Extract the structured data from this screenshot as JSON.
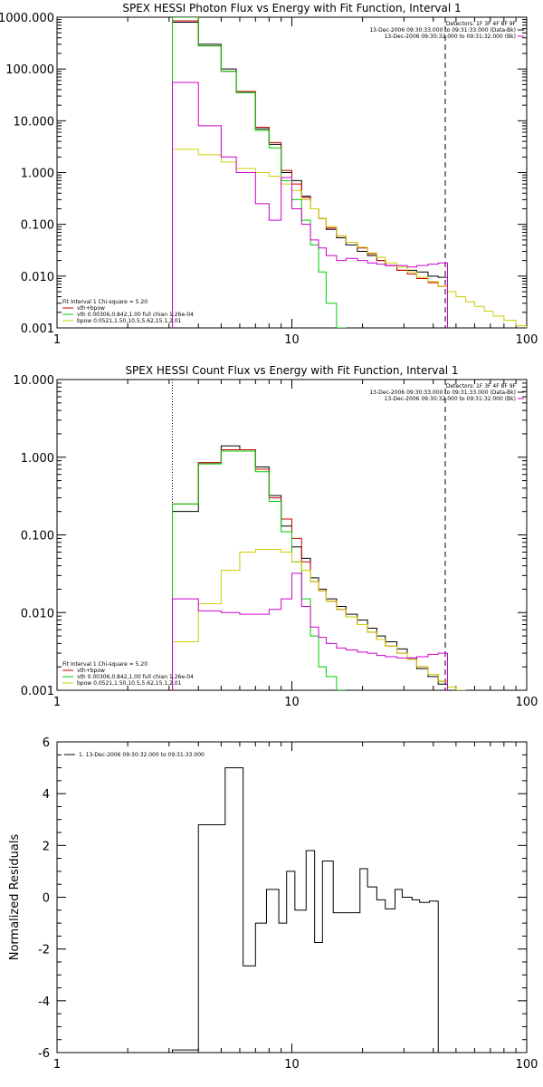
{
  "chart_data": [
    {
      "type": "line",
      "title": "SPEX HESSI Photon Flux vs Energy with Fit Function, Interval 1",
      "xscale": "log",
      "yscale": "log",
      "xlim": [
        1,
        100
      ],
      "ylim": [
        0.001,
        1000
      ],
      "x_tick_labels": [
        "1",
        "10",
        "100"
      ],
      "y_tick_labels": [
        "1000.000",
        "100.000",
        "10.000",
        "1.000",
        "0.100",
        "0.010",
        "0.001"
      ],
      "header_lines": [
        "Detectors: 1F 3F 4F 8F 9F",
        "13-Dec-2006 09:30:33.000 to 09:31:33.000 (Data-Bk)",
        "13-Dec-2006 09:30:32.000 to 09:31:32.000 (Bk)"
      ],
      "fit_lines": [
        "Fit Interval  1    Chi-square = 5.20",
        "vth+bpow",
        "vth 0.00306,0.842,1.00  full chian 1.26e-04",
        "bpow 0.0521,1.50,10.5,5.62,15.1,2.01"
      ],
      "vlines": [
        {
          "x": 3.1,
          "style": "dotted",
          "color": "#000000"
        },
        {
          "x": 45,
          "style": "dashed",
          "color": "#000000"
        }
      ],
      "edges": [
        3.1,
        3.5,
        4.0,
        4.5,
        5.0,
        5.8,
        7.0,
        8.0,
        9.0,
        10.0,
        11.0,
        12.0,
        13.0,
        14.0,
        15.5,
        17.0,
        19.0,
        21.0,
        23.0,
        25.0,
        28.0,
        31.0,
        34.0,
        38.0,
        42.0,
        46.0,
        50.0,
        55.0,
        60.0,
        66.0,
        72.0,
        80.0,
        90.0,
        100.0
      ],
      "series": [
        {
          "name": "Data-Bk",
          "color": "#000000",
          "start": 0,
          "values": [
            800,
            800,
            300,
            300,
            100,
            35,
            7,
            3.5,
            1.0,
            0.7,
            0.35,
            0.2,
            0.13,
            0.08,
            0.055,
            0.04,
            0.03,
            0.025,
            0.02,
            0.016,
            0.013,
            0.013,
            0.012,
            0.01,
            0.0095
          ]
        },
        {
          "name": "vth+bpow",
          "color": "#cc0000",
          "start": 0,
          "values": [
            850,
            850,
            280,
            280,
            90,
            37,
            7.5,
            3.8,
            1.1,
            0.6,
            0.33,
            0.2,
            0.13,
            0.085,
            0.06,
            0.045,
            0.035,
            0.027,
            0.02,
            0.016,
            0.013,
            0.011,
            0.009,
            0.0075,
            0.0063
          ]
        },
        {
          "name": "vth",
          "color": "#00cc00",
          "start": 0,
          "values": [
            1000,
            1000,
            280,
            280,
            90,
            35,
            6.5,
            3.0,
            0.7,
            0.3,
            0.12,
            0.04,
            0.012,
            0.003,
            0.001
          ]
        },
        {
          "name": "bpow",
          "color": "#cccc00",
          "start": 0,
          "values": [
            2.8,
            2.8,
            2.2,
            2.2,
            1.6,
            1.2,
            1.0,
            0.85,
            0.6,
            0.45,
            0.3,
            0.2,
            0.13,
            0.09,
            0.06,
            0.045,
            0.036,
            0.028,
            0.023,
            0.018,
            0.015,
            0.012,
            0.0095,
            0.0078,
            0.0063,
            0.005,
            0.004,
            0.0032,
            0.0026,
            0.0021,
            0.0017,
            0.0014,
            0.0011
          ]
        },
        {
          "name": "Bk",
          "color": "#cc00cc",
          "start": 0,
          "values": [
            55,
            55,
            8,
            8,
            2.0,
            1.0,
            0.25,
            0.12,
            0.8,
            0.2,
            0.1,
            0.05,
            0.035,
            0.025,
            0.02,
            0.022,
            0.02,
            0.018,
            0.017,
            0.016,
            0.016,
            0.015,
            0.016,
            0.017,
            0.018
          ]
        }
      ]
    },
    {
      "type": "line",
      "title": "SPEX HESSI Count Flux vs Energy with Fit Function, Interval 1",
      "xscale": "log",
      "yscale": "log",
      "xlim": [
        1,
        100
      ],
      "ylim": [
        0.001,
        10
      ],
      "x_tick_labels": [
        "1",
        "10",
        "100"
      ],
      "y_tick_labels": [
        "10.000",
        "1.000",
        "0.100",
        "0.010",
        "0.001"
      ],
      "header_lines": [
        "Detectors: 1F 3F 4F 8F 9F",
        "13-Dec-2006 09:30:33.000 to 09:31:33.000 (Data-Bk)",
        "13-Dec-2006 09:30:32.000 to 09:31:32.000 (Bk)"
      ],
      "fit_lines": [
        "Fit Interval  1    Chi-square = 5.20",
        "vth+bpow",
        "vth 0.00306,0.842,1.00  full chian 1.26e-04",
        "bpow 0.0521,1.50,10.5,5.62,15.1,2.01"
      ],
      "vlines": [
        {
          "x": 3.1,
          "style": "dotted",
          "color": "#000000"
        },
        {
          "x": 45,
          "style": "dashed",
          "color": "#000000"
        }
      ],
      "edges": [
        3.1,
        4.0,
        5.0,
        6.0,
        7.0,
        8.0,
        9.0,
        10.0,
        11.0,
        12.0,
        13.0,
        14.0,
        15.5,
        17.0,
        19.0,
        21.0,
        23.0,
        25.0,
        28.0,
        31.0,
        34.0,
        38.0,
        42.0,
        46.0,
        50.0,
        55.0
      ],
      "series": [
        {
          "name": "Data-Bk",
          "color": "#000000",
          "start": 0,
          "values": [
            0.2,
            0.85,
            1.4,
            1.25,
            0.75,
            0.32,
            0.13,
            0.07,
            0.05,
            0.028,
            0.02,
            0.015,
            0.012,
            0.0095,
            0.008,
            0.0063,
            0.005,
            0.0042,
            0.0034,
            0.0026,
            0.0019,
            0.0015,
            0.0012
          ]
        },
        {
          "name": "vth+bpow",
          "color": "#cc0000",
          "start": 0,
          "values": [
            0.25,
            0.85,
            1.25,
            1.25,
            0.7,
            0.3,
            0.16,
            0.09,
            0.045,
            0.025,
            0.019,
            0.014,
            0.011,
            0.0088,
            0.007,
            0.0056,
            0.0045,
            0.0037,
            0.003,
            0.0025,
            0.002,
            0.0016,
            0.0013,
            0.0011,
            0.001
          ]
        },
        {
          "name": "vth",
          "color": "#00cc00",
          "start": 0,
          "values": [
            0.25,
            0.82,
            1.2,
            1.2,
            0.65,
            0.27,
            0.11,
            0.045,
            0.015,
            0.005,
            0.002,
            0.0015,
            0.001
          ]
        },
        {
          "name": "bpow",
          "color": "#cccc00",
          "start": 0,
          "values": [
            0.0042,
            0.013,
            0.035,
            0.06,
            0.065,
            0.065,
            0.06,
            0.045,
            0.035,
            0.025,
            0.019,
            0.014,
            0.011,
            0.0088,
            0.007,
            0.0056,
            0.0045,
            0.0037,
            0.003,
            0.0025,
            0.002,
            0.0016,
            0.0013,
            0.0011,
            0.0009
          ]
        },
        {
          "name": "Bk",
          "color": "#cc00cc",
          "start": 0,
          "values": [
            0.015,
            0.0105,
            0.01,
            0.0095,
            0.0095,
            0.011,
            0.015,
            0.032,
            0.012,
            0.0065,
            0.0048,
            0.004,
            0.0035,
            0.0033,
            0.0031,
            0.003,
            0.0028,
            0.0027,
            0.0026,
            0.0026,
            0.0027,
            0.0029,
            0.003
          ]
        }
      ]
    },
    {
      "type": "line",
      "title": "",
      "xscale": "log",
      "yscale": "linear",
      "xlim": [
        1,
        100
      ],
      "ylim": [
        -6,
        6
      ],
      "x_tick_labels": [
        "1",
        "10",
        "100"
      ],
      "y_tick_labels": [
        "6",
        "4",
        "2",
        "0",
        "-2",
        "-4",
        "-6"
      ],
      "ylabel": "Normalized Residuals",
      "legend": "1. 13-Dec-2006 09:30:32.000 to 09:31:33.000",
      "edges": [
        3.1,
        4.0,
        4.6,
        5.2,
        6.2,
        7.0,
        7.8,
        8.8,
        9.5,
        10.3,
        11.5,
        12.5,
        13.5,
        15.0,
        17.0,
        19.5,
        21.0,
        23.0,
        25.0,
        27.5,
        29.5,
        32.5,
        35.0,
        38.5,
        42.0,
        45.0
      ],
      "series": [
        {
          "name": "Residuals",
          "color": "#000000",
          "start": 0,
          "values": [
            -5.9,
            2.8,
            2.8,
            5.0,
            -2.65,
            -1.0,
            0.3,
            -1.0,
            1.0,
            -0.5,
            1.8,
            -1.75,
            1.4,
            -0.6,
            -0.6,
            1.1,
            0.4,
            -0.1,
            -0.45,
            0.3,
            0.0,
            -0.1,
            -0.2,
            -0.15,
            -6.0
          ]
        }
      ]
    }
  ]
}
